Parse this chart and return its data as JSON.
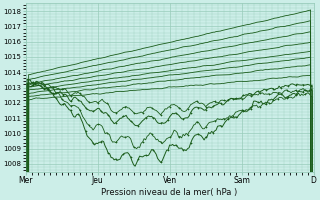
{
  "bg_color": "#cceee8",
  "grid_color": "#99ccbb",
  "line_color": "#1a5c1a",
  "xlabel": "Pression niveau de la mer( hPa )",
  "xtick_labels": [
    "Mer",
    "Jeu",
    "Ven",
    "Sam",
    "D"
  ],
  "xtick_positions": [
    0,
    48,
    96,
    144,
    192
  ],
  "ylim": [
    1007.5,
    1018.5
  ],
  "yticks": [
    1008,
    1009,
    1010,
    1011,
    1012,
    1013,
    1014,
    1015,
    1016,
    1017,
    1018
  ],
  "xlim": [
    0,
    192
  ]
}
